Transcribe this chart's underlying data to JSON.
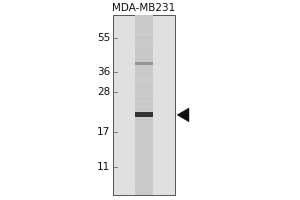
{
  "title": "MDA-MB231",
  "mw_labels": [
    "55",
    "36",
    "28",
    "17",
    "11"
  ],
  "mw_positions": [
    55,
    36,
    28,
    17,
    11
  ],
  "band_mw": 21,
  "band2_mw": 40,
  "bg_color": "#d8d8d8",
  "outer_bg": "#ffffff",
  "gel_bg": "#e0e0e0",
  "band_color": "#222222",
  "band2_color": "#666666",
  "arrow_color": "#111111",
  "title_fontsize": 7.5,
  "label_fontsize": 7.5,
  "border_color": "#555555"
}
